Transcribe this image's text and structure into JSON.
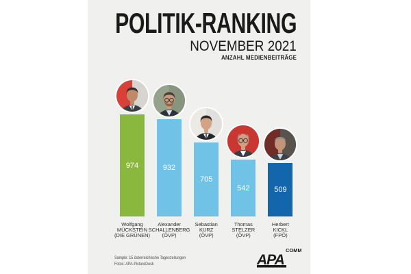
{
  "page": {
    "background": "#ffffff",
    "card_background": "#f0f0ee"
  },
  "header": {
    "title": "POLITIK-RANKING",
    "subtitle": "NOVEMBER 2021",
    "tagline": "ANZAHL MEDIENBEITRÄGE",
    "text_color": "#1a1a1a"
  },
  "chart_data": {
    "type": "bar",
    "title": "POLITIK-RANKING",
    "subtitle": "NOVEMBER 2021",
    "ylabel": "ANZAHL MEDIENBEITRÄGE",
    "categories": [
      "Wolfgang MÜCKSTEIN (DIE GRÜNEN)",
      "Alexander SCHALLENBERG (ÖVP)",
      "Sebastian KURZ (ÖVP)",
      "Thomas STELZER (ÖVP)",
      "Herbert KICKL (FPÖ)"
    ],
    "values": [
      974,
      932,
      705,
      542,
      509
    ],
    "bar_colors": [
      "#8ab73e",
      "#70c2e6",
      "#70c2e6",
      "#70c2e6",
      "#1365ac"
    ],
    "value_label_color": "#ffffff",
    "value_label_position": "center",
    "ylim": [
      0,
      1000
    ],
    "grid": false,
    "legend": false,
    "photos_above_bars": true
  },
  "bars": [
    {
      "value": 974,
      "line1": "Wolfgang",
      "line2": "MÜCKSTEIN",
      "line3": "(DIE GRÜNEN)",
      "color": "#8ab73e",
      "photo": {
        "bg_left": "#d8403a",
        "bg_right": "#d6d5d1",
        "skin": "#c08a68",
        "hair": "#3a322e",
        "hair_style": "full",
        "suit": "#3b3f46",
        "shirt": "#ffffff",
        "tie": "#2c2f35",
        "glasses": false,
        "beard": null
      }
    },
    {
      "value": 932,
      "line1": "Alexander",
      "line2": "SCHALLENBERG",
      "line3": "(ÖVP)",
      "color": "#70c2e6",
      "photo": {
        "bg_left": "#95a28c",
        "bg_right": "#87947e",
        "skin": "#c79b7d",
        "hair": "#4d3e33",
        "hair_style": "full",
        "suit": "#2d333d",
        "shirt": "#d7e4ee",
        "tie": null,
        "glasses": true,
        "beard": "#8a6547"
      }
    },
    {
      "value": 705,
      "line1": "Sebastian",
      "line2": "KURZ",
      "line3": "(ÖVP)",
      "color": "#70c2e6",
      "photo": {
        "bg_left": "#eceae7",
        "bg_right": "#e2e0dd",
        "skin": "#d2a485",
        "hair": "#2e2927",
        "hair_style": "full",
        "suit": "#24272c",
        "shirt": "#ffffff",
        "tie": "#30343a",
        "glasses": false,
        "beard": null
      }
    },
    {
      "value": 542,
      "line1": "Thomas",
      "line2": "STELZER",
      "line3": "(ÖVP)",
      "color": "#70c2e6",
      "photo": {
        "bg_left": "#c93732",
        "bg_right": "#c93732",
        "skin": "#d29f82",
        "hair": "#a49d94",
        "hair_style": "balding",
        "suit": "#383e46",
        "shirt": "#ffffff",
        "tie": null,
        "glasses": true,
        "beard": null
      }
    },
    {
      "value": 509,
      "line1": "Herbert",
      "line2": "KICKL",
      "line3": "(FPÖ)",
      "color": "#1365ac",
      "photo": {
        "bg_left": "#722c27",
        "bg_right": "#59534e",
        "skin": "#c2957a",
        "hair": "#908b84",
        "hair_style": "buzz",
        "suit": "#3d4248",
        "shirt": "#cfd4d8",
        "tie": null,
        "glasses": false,
        "beard": null
      }
    }
  ],
  "footer": {
    "line1": "Sample: 15 österreichische Tageszeitungen",
    "line2": "Fotos: APA-PictureDesk"
  },
  "logo": {
    "brand": "APA",
    "suffix": "COMM",
    "color": "#1b1b1b"
  }
}
